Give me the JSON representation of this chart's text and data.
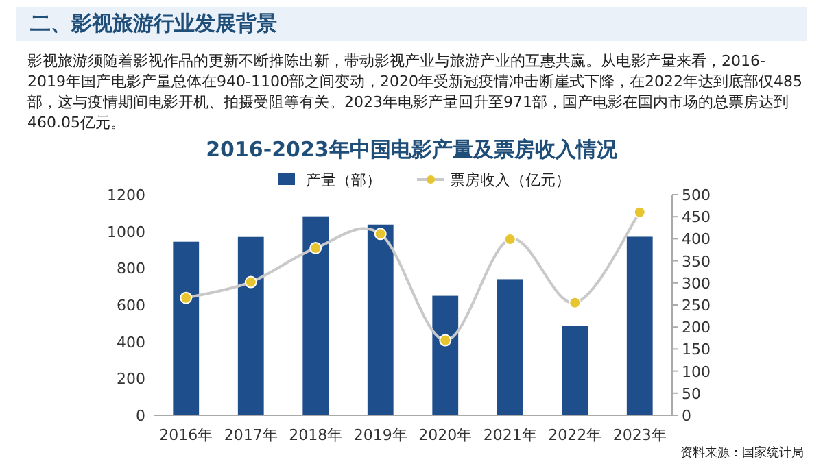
{
  "chart_data": {
    "type": "bar",
    "title": "2016-2023年中国电影产量及票房收入情况",
    "annotations": [
      "二、影视旅游行业发展背景",
      "影视旅游须随着影视作品的更新不断推陈出新，带动影视产业与旅游产业的互惠共赢。从电影产量来看，2016-2019年国产电影产量总体在940-1100部之间变动，2020年受新冠疫情冲击断崖式下降，在2022年达到底部仅485部，这与疫情期间电影开机、拍摄受阻等有关。2023年电影产量回升至971部，国产电影在国内市场的总票房达到460.05亿元。",
      "资料来源：国家统计局"
    ],
    "categories": [
      "2016年",
      "2017年",
      "2018年",
      "2019年",
      "2020年",
      "2021年",
      "2022年",
      "2023年"
    ],
    "series": [
      {
        "name": "产量（部）",
        "color": "#1f4e8c",
        "values": [
          944,
          970,
          1082,
          1037,
          650,
          740,
          485,
          971
        ]
      },
      {
        "name": "票房收入（亿元）",
        "type": "line",
        "axis": "y2",
        "marker": "circle",
        "color": "#e6c530",
        "values": [
          266,
          302,
          379,
          411,
          170,
          399,
          255,
          460
        ]
      }
    ],
    "ylim": [
      0,
      1200
    ],
    "yticks": [
      0,
      200,
      400,
      600,
      800,
      1000,
      1200
    ],
    "y2lim": [
      0,
      500
    ],
    "y2ticks": [
      0,
      50,
      100,
      150,
      200,
      250,
      300,
      350,
      400,
      450,
      500
    ],
    "legend": "top",
    "grid": false
  }
}
